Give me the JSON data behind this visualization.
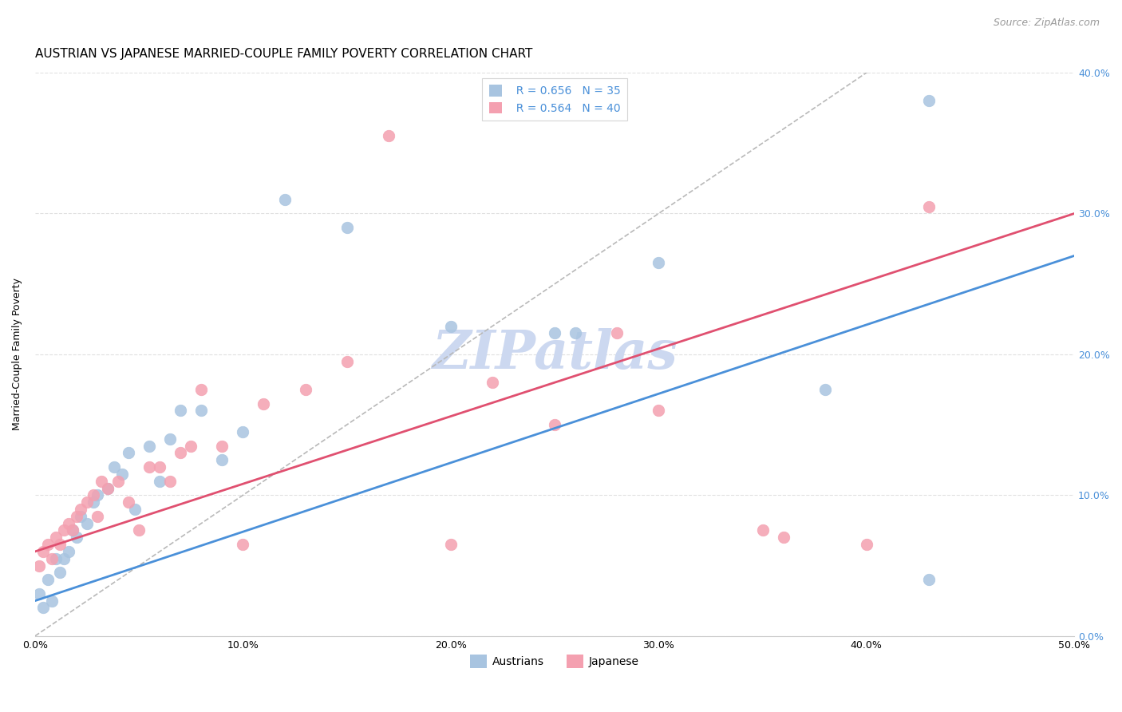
{
  "title": "AUSTRIAN VS JAPANESE MARRIED-COUPLE FAMILY POVERTY CORRELATION CHART",
  "source": "Source: ZipAtlas.com",
  "ylabel": "Married-Couple Family Poverty",
  "xlim": [
    0,
    0.5
  ],
  "ylim": [
    0,
    0.4
  ],
  "xticks": [
    0.0,
    0.1,
    0.2,
    0.3,
    0.4,
    0.5
  ],
  "yticks": [
    0.0,
    0.1,
    0.2,
    0.3,
    0.4
  ],
  "xticklabels": [
    "0.0%",
    "10.0%",
    "20.0%",
    "30.0%",
    "40.0%",
    "50.0%"
  ],
  "yticklabels_right": [
    "0.0%",
    "10.0%",
    "20.0%",
    "30.0%",
    "40.0%"
  ],
  "legend_r_austrians": "R = 0.656",
  "legend_n_austrians": "N = 35",
  "legend_r_japanese": "R = 0.564",
  "legend_n_japanese": "N = 40",
  "austrians_color": "#a8c4e0",
  "japanese_color": "#f4a0b0",
  "regression_austrians_color": "#4a90d9",
  "regression_japanese_color": "#e05070",
  "diagonal_color": "#b8b8b8",
  "watermark_color": "#ccd8f0",
  "watermark_text": "ZIPatlas",
  "austrians_x": [
    0.002,
    0.004,
    0.006,
    0.008,
    0.01,
    0.012,
    0.014,
    0.016,
    0.018,
    0.02,
    0.022,
    0.025,
    0.028,
    0.03,
    0.035,
    0.038,
    0.042,
    0.045,
    0.048,
    0.055,
    0.06,
    0.065,
    0.07,
    0.08,
    0.09,
    0.1,
    0.12,
    0.15,
    0.2,
    0.25,
    0.26,
    0.3,
    0.38,
    0.43,
    0.43
  ],
  "austrians_y": [
    0.03,
    0.02,
    0.04,
    0.025,
    0.055,
    0.045,
    0.055,
    0.06,
    0.075,
    0.07,
    0.085,
    0.08,
    0.095,
    0.1,
    0.105,
    0.12,
    0.115,
    0.13,
    0.09,
    0.135,
    0.11,
    0.14,
    0.16,
    0.16,
    0.125,
    0.145,
    0.31,
    0.29,
    0.22,
    0.215,
    0.215,
    0.265,
    0.175,
    0.38,
    0.04
  ],
  "japanese_x": [
    0.002,
    0.004,
    0.006,
    0.008,
    0.01,
    0.012,
    0.014,
    0.016,
    0.018,
    0.02,
    0.022,
    0.025,
    0.028,
    0.03,
    0.032,
    0.035,
    0.04,
    0.045,
    0.05,
    0.055,
    0.06,
    0.065,
    0.07,
    0.075,
    0.08,
    0.09,
    0.1,
    0.11,
    0.13,
    0.15,
    0.17,
    0.2,
    0.22,
    0.25,
    0.28,
    0.3,
    0.35,
    0.36,
    0.4,
    0.43
  ],
  "japanese_y": [
    0.05,
    0.06,
    0.065,
    0.055,
    0.07,
    0.065,
    0.075,
    0.08,
    0.075,
    0.085,
    0.09,
    0.095,
    0.1,
    0.085,
    0.11,
    0.105,
    0.11,
    0.095,
    0.075,
    0.12,
    0.12,
    0.11,
    0.13,
    0.135,
    0.175,
    0.135,
    0.065,
    0.165,
    0.175,
    0.195,
    0.355,
    0.065,
    0.18,
    0.15,
    0.215,
    0.16,
    0.075,
    0.07,
    0.065,
    0.305
  ],
  "grid_color": "#e0e0e0",
  "background_color": "#ffffff",
  "title_fontsize": 11,
  "axis_label_fontsize": 9,
  "tick_fontsize": 9,
  "legend_fontsize": 10,
  "source_fontsize": 9,
  "regression_aus_x0": 0.0,
  "regression_aus_y0": 0.025,
  "regression_aus_x1": 0.5,
  "regression_aus_y1": 0.27,
  "regression_jap_x0": 0.0,
  "regression_jap_y0": 0.06,
  "regression_jap_x1": 0.5,
  "regression_jap_y1": 0.3
}
